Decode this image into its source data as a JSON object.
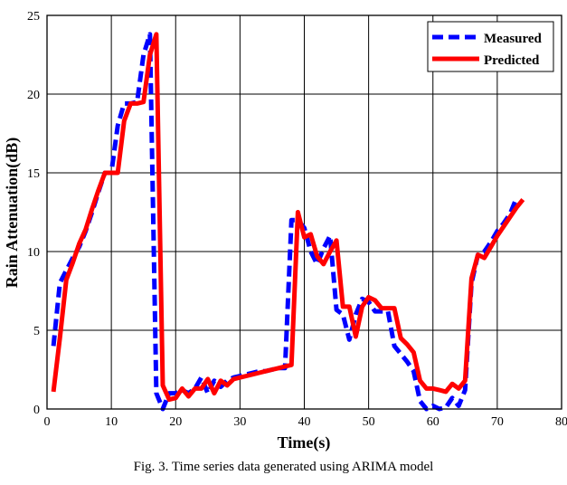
{
  "chart_data": {
    "type": "line",
    "title": "",
    "xlabel": "Time(s)",
    "ylabel": "Rain Attenuation(dB)",
    "xlim": [
      0,
      80
    ],
    "ylim": [
      0,
      25
    ],
    "xticks": [
      0,
      10,
      20,
      30,
      40,
      50,
      60,
      70,
      80
    ],
    "yticks": [
      0,
      5,
      10,
      15,
      20,
      25
    ],
    "grid": true,
    "legend_position": "top-right",
    "series": [
      {
        "name": "Measured",
        "color": "#0000ff",
        "style": "dashed",
        "x": [
          1,
          2,
          3,
          4,
          5,
          6,
          7,
          8,
          9,
          10,
          11,
          12,
          13,
          14,
          15,
          16,
          17,
          18,
          19,
          20,
          21,
          22,
          23,
          24,
          25,
          26,
          27,
          28,
          29,
          30,
          31,
          32,
          33,
          34,
          35,
          36,
          37,
          38,
          39,
          40,
          41,
          42,
          43,
          44,
          45,
          46,
          47,
          48,
          49,
          50,
          51,
          52,
          53,
          54,
          55,
          56,
          57,
          58,
          59,
          60,
          61,
          62,
          63,
          64,
          65,
          66,
          67,
          68,
          69,
          70,
          71,
          72,
          73
        ],
        "y": [
          4,
          8,
          8.8,
          9.6,
          10.3,
          11.3,
          12.5,
          13.8,
          15,
          15,
          18,
          19.4,
          19.4,
          19.5,
          22.5,
          23.8,
          1,
          0,
          1,
          1,
          1.2,
          1,
          1.3,
          2,
          1,
          1.8,
          1.4,
          1.8,
          2,
          2.1,
          2.2,
          2.3,
          2.4,
          2.4,
          2.5,
          2.6,
          2.6,
          12,
          12,
          11.5,
          10,
          9.2,
          10.2,
          11,
          6.3,
          6,
          4.4,
          6,
          7,
          6.8,
          6.2,
          6.2,
          6.2,
          4,
          3.5,
          3,
          2.4,
          0.5,
          0,
          0.2,
          0,
          0.1,
          0.7,
          0.2,
          1.2,
          8,
          9.8,
          10,
          10.6,
          11.3,
          11.8,
          12.4,
          13.4
        ]
      },
      {
        "name": "Predicted",
        "color": "#ff0000",
        "style": "solid",
        "x": [
          1,
          2,
          3,
          4,
          5,
          6,
          7,
          8,
          9,
          10,
          11,
          12,
          13,
          14,
          15,
          16,
          17,
          18,
          19,
          20,
          21,
          22,
          23,
          24,
          25,
          26,
          27,
          28,
          29,
          30,
          31,
          32,
          33,
          34,
          35,
          36,
          37,
          38,
          39,
          40,
          41,
          42,
          43,
          44,
          45,
          46,
          47,
          48,
          49,
          50,
          51,
          52,
          53,
          54,
          55,
          56,
          57,
          58,
          59,
          60,
          61,
          62,
          63,
          64,
          65,
          66,
          67,
          68,
          69,
          70,
          71,
          72,
          73,
          74
        ],
        "y": [
          1.1,
          4.5,
          8.2,
          9.3,
          10.5,
          11.4,
          12.7,
          13.9,
          15,
          15,
          15,
          18.3,
          19.4,
          19.4,
          19.5,
          22.5,
          23.8,
          1.5,
          0.6,
          0.7,
          1.3,
          0.8,
          1.3,
          1.3,
          1.9,
          1,
          1.8,
          1.5,
          1.9,
          2,
          2.1,
          2.2,
          2.3,
          2.4,
          2.5,
          2.6,
          2.7,
          2.8,
          12.5,
          10.9,
          11.1,
          9.7,
          9.2,
          10,
          10.7,
          6.5,
          6.5,
          4.6,
          6.5,
          7.1,
          6.9,
          6.4,
          6.4,
          6.4,
          4.5,
          4.1,
          3.6,
          1.8,
          1.3,
          1.3,
          1.2,
          1.1,
          1.6,
          1.3,
          1.8,
          8.3,
          9.8,
          9.6,
          10.3,
          11,
          11.6,
          12.2,
          12.8,
          13.3
        ]
      }
    ],
    "caption": "Fig. 3. Time series data generated using ARIMA model"
  }
}
